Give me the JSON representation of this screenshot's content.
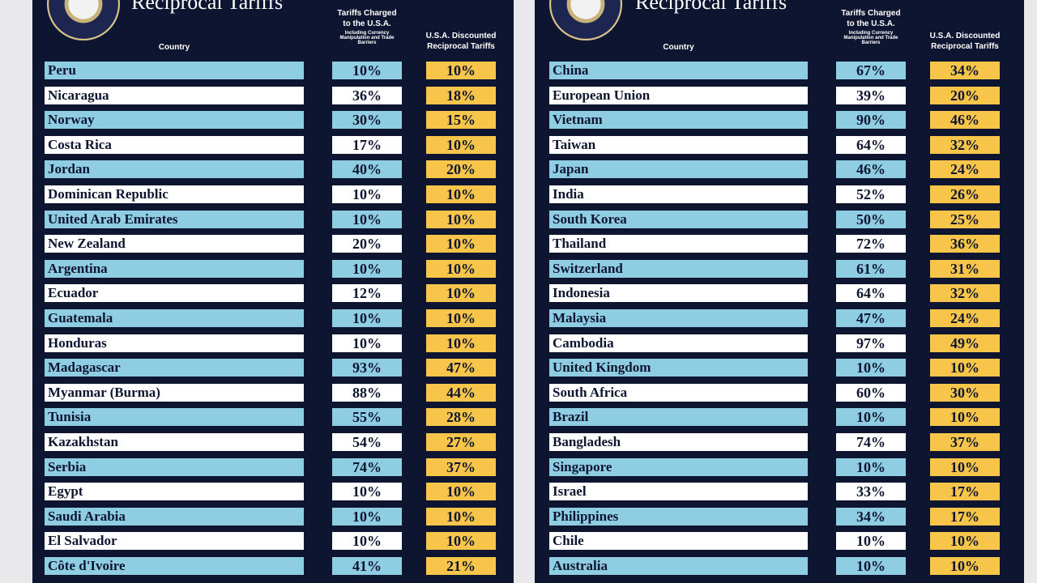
{
  "panels": [
    {
      "title": "Reciprocal Tariffs",
      "headers": {
        "country": "Country",
        "charged": "Tariffs Charged to the U.S.A.",
        "charged_note": "Including Currency Manipulation and Trade Barriers",
        "reciprocal": "U.S.A. Discounted Reciprocal Tariffs"
      },
      "rows": [
        [
          "Peru",
          "10%",
          "10%"
        ],
        [
          "Nicaragua",
          "36%",
          "18%"
        ],
        [
          "Norway",
          "30%",
          "15%"
        ],
        [
          "Costa Rica",
          "17%",
          "10%"
        ],
        [
          "Jordan",
          "40%",
          "20%"
        ],
        [
          "Dominican Republic",
          "10%",
          "10%"
        ],
        [
          "United Arab Emirates",
          "10%",
          "10%"
        ],
        [
          "New Zealand",
          "20%",
          "10%"
        ],
        [
          "Argentina",
          "10%",
          "10%"
        ],
        [
          "Ecuador",
          "12%",
          "10%"
        ],
        [
          "Guatemala",
          "10%",
          "10%"
        ],
        [
          "Honduras",
          "10%",
          "10%"
        ],
        [
          "Madagascar",
          "93%",
          "47%"
        ],
        [
          "Myanmar (Burma)",
          "88%",
          "44%"
        ],
        [
          "Tunisia",
          "55%",
          "28%"
        ],
        [
          "Kazakhstan",
          "54%",
          "27%"
        ],
        [
          "Serbia",
          "74%",
          "37%"
        ],
        [
          "Egypt",
          "10%",
          "10%"
        ],
        [
          "Saudi Arabia",
          "10%",
          "10%"
        ],
        [
          "El Salvador",
          "10%",
          "10%"
        ],
        [
          "Côte d'Ivoire",
          "41%",
          "21%"
        ]
      ]
    },
    {
      "title": "Reciprocal Tariffs",
      "headers": {
        "country": "Country",
        "charged": "Tariffs Charged to the U.S.A.",
        "charged_note": "Including Currency Manipulation and Trade Barriers",
        "reciprocal": "U.S.A. Discounted Reciprocal Tariffs"
      },
      "rows": [
        [
          "China",
          "67%",
          "34%"
        ],
        [
          "European Union",
          "39%",
          "20%"
        ],
        [
          "Vietnam",
          "90%",
          "46%"
        ],
        [
          "Taiwan",
          "64%",
          "32%"
        ],
        [
          "Japan",
          "46%",
          "24%"
        ],
        [
          "India",
          "52%",
          "26%"
        ],
        [
          "South Korea",
          "50%",
          "25%"
        ],
        [
          "Thailand",
          "72%",
          "36%"
        ],
        [
          "Switzerland",
          "61%",
          "31%"
        ],
        [
          "Indonesia",
          "64%",
          "32%"
        ],
        [
          "Malaysia",
          "47%",
          "24%"
        ],
        [
          "Cambodia",
          "97%",
          "49%"
        ],
        [
          "United Kingdom",
          "10%",
          "10%"
        ],
        [
          "South Africa",
          "60%",
          "30%"
        ],
        [
          "Brazil",
          "10%",
          "10%"
        ],
        [
          "Bangladesh",
          "74%",
          "37%"
        ],
        [
          "Singapore",
          "10%",
          "10%"
        ],
        [
          "Israel",
          "33%",
          "17%"
        ],
        [
          "Philippines",
          "34%",
          "17%"
        ],
        [
          "Chile",
          "10%",
          "10%"
        ],
        [
          "Australia",
          "10%",
          "10%"
        ]
      ]
    }
  ]
}
